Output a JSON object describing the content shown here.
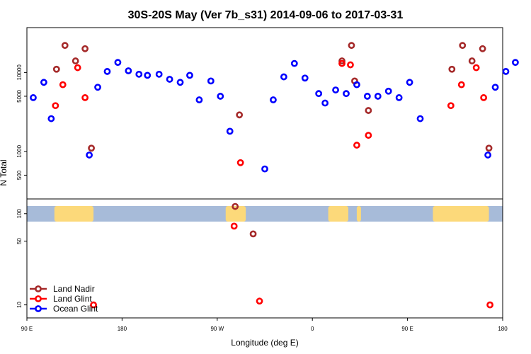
{
  "chart_data": {
    "type": "scatter",
    "title": "30S-20S May (Ver 7b_s31)   2014-09-06 to 2017-03-31",
    "xlabel": "Longitude (deg E)",
    "ylabel": "N Total",
    "x_ticks": [
      {
        "value": 90,
        "label": "90 E"
      },
      {
        "value": 180,
        "label": "180"
      },
      {
        "value": 270,
        "label": "90 W"
      },
      {
        "value": 360,
        "label": "0"
      },
      {
        "value": 450,
        "label": "90 E"
      },
      {
        "value": 540,
        "label": "180"
      }
    ],
    "xlim": [
      90,
      540
    ],
    "upper_panel": {
      "scale": "log",
      "y_ticks": [
        500,
        1000,
        5000,
        10000
      ],
      "ylim": [
        250,
        37000
      ]
    },
    "lower_panel": {
      "scale": "log",
      "y_ticks": [
        10,
        50,
        100
      ],
      "ylim": [
        7.2,
        145
      ]
    },
    "land_bands": [
      {
        "from": 116,
        "to": 153
      },
      {
        "from": 278,
        "to": 297
      },
      {
        "from": 375,
        "to": 394
      },
      {
        "from": 402,
        "to": 406
      },
      {
        "from": 474,
        "to": 527
      }
    ],
    "legend_position": "bottom-left",
    "series": [
      {
        "name": "Land Nadir",
        "color": "#a52a2a",
        "upper": [
          [
            118,
            11000
          ],
          [
            126,
            22000
          ],
          [
            136,
            14000
          ],
          [
            145,
            20000
          ],
          [
            151,
            1100
          ],
          [
            291,
            2900
          ],
          [
            388,
            14000
          ],
          [
            397,
            22000
          ],
          [
            400,
            7800
          ],
          [
            413,
            3300
          ],
          [
            492,
            11000
          ],
          [
            502,
            22000
          ],
          [
            511,
            14000
          ],
          [
            521,
            20000
          ],
          [
            527,
            1100
          ]
        ],
        "lower": [
          [
            287,
            120
          ],
          [
            304,
            60
          ]
        ]
      },
      {
        "name": "Land Glint",
        "color": "#ff0000",
        "upper": [
          [
            117,
            3800
          ],
          [
            124,
            7000
          ],
          [
            138,
            11500
          ],
          [
            145,
            4800
          ],
          [
            292,
            720
          ],
          [
            388,
            13000
          ],
          [
            396,
            12500
          ],
          [
            402,
            1200
          ],
          [
            413,
            1600
          ],
          [
            491,
            3800
          ],
          [
            501,
            7000
          ],
          [
            515,
            11500
          ],
          [
            522,
            4800
          ]
        ],
        "lower": [
          [
            286,
            73
          ],
          [
            310,
            11
          ],
          [
            153,
            10
          ],
          [
            528,
            10
          ]
        ]
      },
      {
        "name": "Ocean Glint",
        "color": "#0000ff",
        "upper": [
          [
            96,
            4800
          ],
          [
            106,
            7500
          ],
          [
            113,
            2600
          ],
          [
            149,
            900
          ],
          [
            157,
            6500
          ],
          [
            166,
            10300
          ],
          [
            176,
            13400
          ],
          [
            186,
            10500
          ],
          [
            196,
            9500
          ],
          [
            204,
            9200
          ],
          [
            215,
            9500
          ],
          [
            225,
            8200
          ],
          [
            235,
            7500
          ],
          [
            244,
            9200
          ],
          [
            253,
            4500
          ],
          [
            264,
            7800
          ],
          [
            273,
            5000
          ],
          [
            282,
            1800
          ],
          [
            315,
            600
          ],
          [
            323,
            4500
          ],
          [
            333,
            8800
          ],
          [
            343,
            13000
          ],
          [
            353,
            8500
          ],
          [
            366,
            5400
          ],
          [
            372,
            4100
          ],
          [
            382,
            6000
          ],
          [
            392,
            5400
          ],
          [
            402,
            7000
          ],
          [
            412,
            5000
          ],
          [
            422,
            5000
          ],
          [
            432,
            5800
          ],
          [
            442,
            4800
          ],
          [
            452,
            7500
          ],
          [
            462,
            2600
          ],
          [
            526,
            900
          ],
          [
            533,
            6500
          ],
          [
            543,
            10300
          ],
          [
            552,
            13400
          ]
        ],
        "lower": []
      }
    ]
  }
}
